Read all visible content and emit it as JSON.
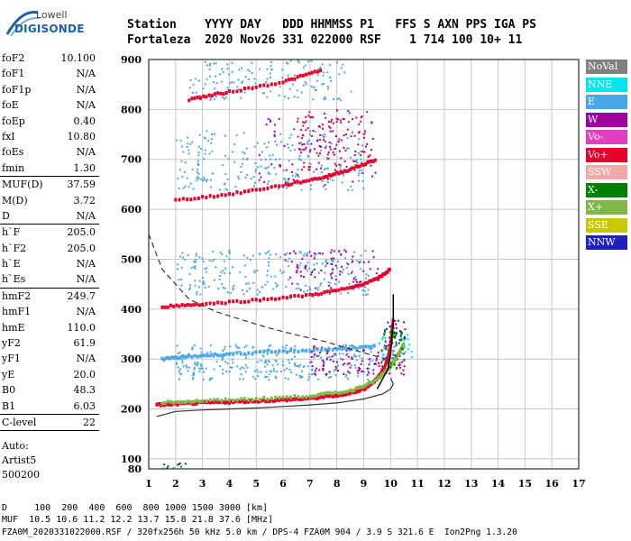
{
  "logo": {
    "top": "Lowell",
    "bottom": "DIGISONDE"
  },
  "header": {
    "line1": "Station    YYYY DAY   DDD HHMMSS P1   FFS S AXN PPS IGA PS",
    "line2": "Fortaleza  2020 Nov26 331 022000 RSF    1 714 100 10+ 11"
  },
  "params": {
    "group1": [
      {
        "k": "foF2",
        "v": "10.100"
      },
      {
        "k": "foF1",
        "v": "N/A"
      },
      {
        "k": "foF1p",
        "v": "N/A"
      },
      {
        "k": "foE",
        "v": "N/A"
      },
      {
        "k": "foEp",
        "v": "0.40"
      },
      {
        "k": "fxI",
        "v": "10.80"
      },
      {
        "k": "foEs",
        "v": "N/A"
      },
      {
        "k": "fmin",
        "v": "1.30"
      }
    ],
    "group2": [
      {
        "k": "MUF(D)",
        "v": "37.59"
      },
      {
        "k": "M(D)",
        "v": "3.72"
      },
      {
        "k": "D",
        "v": "N/A"
      }
    ],
    "group3": [
      {
        "k": "h`F",
        "v": "205.0"
      },
      {
        "k": "h`F2",
        "v": "205.0"
      },
      {
        "k": "h`E",
        "v": "N/A"
      },
      {
        "k": "h`Es",
        "v": "N/A"
      }
    ],
    "group4": [
      {
        "k": "hmF2",
        "v": "249.7"
      },
      {
        "k": "hmF1",
        "v": "N/A"
      },
      {
        "k": "hmE",
        "v": "110.0"
      },
      {
        "k": "yF2",
        "v": "61.9"
      },
      {
        "k": "yF1",
        "v": "N/A"
      },
      {
        "k": "yE",
        "v": "20.0"
      },
      {
        "k": "B0",
        "v": "48.3"
      },
      {
        "k": "B1",
        "v": "6.03"
      }
    ],
    "group5": [
      {
        "k": "C-level",
        "v": "22"
      }
    ],
    "auto": [
      "Auto:",
      "Artist5",
      "500200"
    ]
  },
  "legend": [
    {
      "label": "NoVal",
      "color": "#808080"
    },
    {
      "label": "NNE",
      "color": "#00e5ee"
    },
    {
      "label": "E",
      "color": "#4aa8e8"
    },
    {
      "label": "W",
      "color": "#a000a0"
    },
    {
      "label": "Vo-",
      "color": "#e040c0"
    },
    {
      "label": "Vo+",
      "color": "#e8002a"
    },
    {
      "label": "SSW",
      "color": "#f0a8a8"
    },
    {
      "label": "X-",
      "color": "#008000"
    },
    {
      "label": "X+",
      "color": "#80b848"
    },
    {
      "label": "SSE",
      "color": "#c8c800"
    },
    {
      "label": "NNW",
      "color": "#2020c0"
    }
  ],
  "footer": {
    "distances": "D     100  200  400  600  800 1000 1500 3000 [km]",
    "mufs": "MUF  10.5 10.6 11.2 12.2 13.7 15.8 21.8 37.6 [MHz]",
    "file": "FZA0M_2020331022000.RSF / 320fx256h 50 kHz 5.0 km / DPS-4 FZA0M 904 / 3.9 S 321.6 E  Ion2Png 1.3.20"
  },
  "chart_data": {
    "type": "scatter",
    "xlabel": "",
    "ylabel": "",
    "xlim": [
      1,
      17
    ],
    "ylim": [
      80,
      900
    ],
    "xticks": [
      1,
      2,
      3,
      4,
      5,
      6,
      7,
      8,
      9,
      10,
      11,
      12,
      13,
      14,
      15,
      16,
      17
    ],
    "yticks": [
      80,
      100,
      200,
      300,
      400,
      500,
      600,
      700,
      800,
      900
    ],
    "grid": true,
    "legend_position": "right",
    "traces": [
      {
        "name": "O-trace F2 (1st hop)",
        "color": "#e8002a",
        "x": [
          1.3,
          2,
          3,
          4,
          5,
          6,
          7,
          8,
          8.5,
          9,
          9.4,
          9.7,
          9.9,
          10.0,
          10.1
        ],
        "y": [
          208,
          210,
          212,
          214,
          216,
          218,
          221,
          227,
          232,
          240,
          255,
          275,
          300,
          330,
          380
        ]
      },
      {
        "name": "X-trace F2",
        "color": "#80b848",
        "x": [
          1.5,
          3,
          5,
          7,
          8.5,
          9.5,
          10.0,
          10.3,
          10.5
        ],
        "y": [
          213,
          216,
          220,
          226,
          236,
          258,
          285,
          310,
          330
        ]
      },
      {
        "name": "O-trace F2 (2nd hop)",
        "color": "#e8002a",
        "x": [
          1.5,
          3,
          5,
          7,
          8.5,
          9.5,
          10.0
        ],
        "y": [
          405,
          410,
          418,
          428,
          442,
          460,
          480
        ]
      },
      {
        "name": "O-trace F2 (3rd hop)",
        "color": "#e8002a",
        "x": [
          2,
          4,
          6,
          7.5,
          8.5,
          9.5
        ],
        "y": [
          618,
          630,
          648,
          664,
          680,
          700
        ]
      },
      {
        "name": "O-trace F2 (4th hop)",
        "color": "#e8002a",
        "x": [
          2.5,
          4,
          6,
          7.5
        ],
        "y": [
          820,
          835,
          855,
          880
        ]
      },
      {
        "name": "Es / E traces",
        "color": "#4aa8e8",
        "x": [
          1.5,
          2.5,
          4,
          6,
          8,
          9.5
        ],
        "y": [
          300,
          305,
          310,
          315,
          320,
          325
        ]
      }
    ],
    "profile_solid": {
      "x": [
        1.3,
        2,
        3,
        4,
        5,
        6,
        7,
        8,
        9,
        9.7,
        10.0,
        10.1,
        10.0
      ],
      "y": [
        185,
        195,
        198,
        200,
        202,
        205,
        208,
        212,
        220,
        230,
        240,
        250,
        262
      ]
    },
    "profile_dashed": {
      "x": [
        1.0,
        1.5,
        2.5,
        3.5,
        4.5,
        5.5,
        6.5,
        7.5,
        8.5,
        9.5,
        10.0
      ],
      "y": [
        550,
        480,
        420,
        395,
        378,
        362,
        348,
        336,
        320,
        305,
        298
      ]
    },
    "trace_line_black": {
      "x": [
        9.5,
        9.9,
        10.0,
        10.05,
        10.1,
        10.1
      ],
      "y": [
        240,
        280,
        310,
        340,
        380,
        430
      ]
    }
  }
}
